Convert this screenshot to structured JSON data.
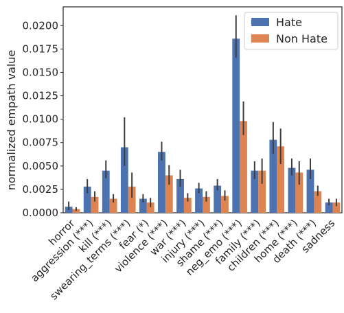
{
  "chart_data": {
    "type": "bar",
    "ylabel": "normalized empath value",
    "ylim": [
      0,
      0.022
    ],
    "yticks": [
      0.0,
      0.0025,
      0.005,
      0.0075,
      0.01,
      0.0125,
      0.015,
      0.0175,
      0.02
    ],
    "ytick_labels": [
      "0.0000",
      "0.0025",
      "0.0050",
      "0.0075",
      "0.0100",
      "0.0125",
      "0.0150",
      "0.0175",
      "0.0200"
    ],
    "grid": false,
    "legend_position": "top-right",
    "categories": [
      "horror",
      "aggression (***)",
      "kill (***)",
      "swearing_terms (***)",
      "fear (*)",
      "violence (***)",
      "war (***)",
      "injury (***)",
      "shame (***)",
      "neg_emo (***)",
      "family (***)",
      "children (***)",
      "home (***)",
      "death (***)",
      "sadness"
    ],
    "series": [
      {
        "name": "Hate",
        "color": "#4c72b0",
        "values": [
          0.00065,
          0.0028,
          0.0045,
          0.007,
          0.0015,
          0.0065,
          0.0036,
          0.0026,
          0.0029,
          0.0186,
          0.0045,
          0.0078,
          0.0048,
          0.0046,
          0.0011
        ],
        "err_low": [
          0.0003,
          0.0021,
          0.0037,
          0.005,
          0.0011,
          0.0056,
          0.0028,
          0.0021,
          0.0024,
          0.0166,
          0.0036,
          0.0063,
          0.004,
          0.0036,
          0.0008
        ],
        "err_high": [
          0.0012,
          0.0036,
          0.0056,
          0.0102,
          0.002,
          0.0076,
          0.0046,
          0.0032,
          0.0036,
          0.0211,
          0.0055,
          0.0097,
          0.0058,
          0.0058,
          0.0015
        ]
      },
      {
        "name": "Non Hate",
        "color": "#dd8452",
        "values": [
          0.0004,
          0.0017,
          0.0015,
          0.0028,
          0.0011,
          0.004,
          0.0016,
          0.0017,
          0.0018,
          0.0098,
          0.0045,
          0.0071,
          0.0043,
          0.0023,
          0.0011
        ],
        "err_low": [
          0.0002,
          0.0012,
          0.0011,
          0.0016,
          0.0006,
          0.003,
          0.0012,
          0.0012,
          0.0013,
          0.0083,
          0.0031,
          0.0052,
          0.003,
          0.0018,
          0.0007
        ],
        "err_high": [
          0.0006,
          0.0023,
          0.002,
          0.0043,
          0.0016,
          0.0051,
          0.0021,
          0.0023,
          0.0024,
          0.0119,
          0.0058,
          0.009,
          0.0055,
          0.0029,
          0.0015
        ]
      }
    ]
  }
}
